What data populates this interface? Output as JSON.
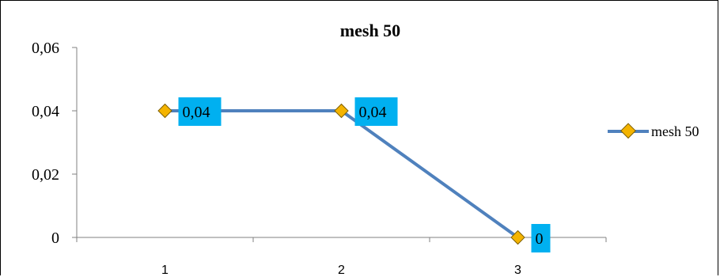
{
  "chart_data": {
    "type": "line",
    "title": "mesh 50",
    "xlabel": "",
    "ylabel": "",
    "categories": [
      "1",
      "2",
      "3"
    ],
    "series": [
      {
        "name": "mesh 50",
        "values": [
          0.04,
          0.04,
          0
        ],
        "data_labels": [
          "0,04",
          "0,04",
          "0"
        ]
      }
    ],
    "ylim": [
      0,
      0.06
    ],
    "yticks": [
      {
        "value": 0,
        "label": "0"
      },
      {
        "value": 0.02,
        "label": "0,02"
      },
      {
        "value": 0.04,
        "label": "0,04"
      },
      {
        "value": 0.06,
        "label": "0,06"
      }
    ],
    "grid": false,
    "legend_position": "right",
    "colors": {
      "line": "#4f81bd",
      "marker_fill": "#f4b400",
      "marker_stroke": "#7f6000",
      "data_label_bg": "#00b0f0",
      "axis": "#808080"
    }
  }
}
